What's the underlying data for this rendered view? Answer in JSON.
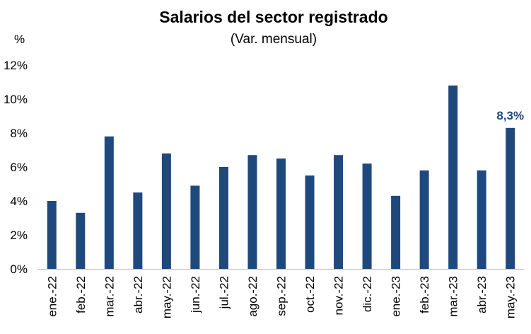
{
  "chart_data": {
    "type": "bar",
    "title": "Salarios del sector registrado",
    "subtitle": "(Var. mensual)",
    "y_unit_label": "%",
    "categories": [
      "ene.-22",
      "feb.-22",
      "mar.-22",
      "abr.-22",
      "may.-22",
      "jun.-22",
      "jul.-22",
      "ago.-22",
      "sep.-22",
      "oct.-22",
      "nov.-22",
      "dic.-22",
      "ene.-23",
      "feb.-23",
      "mar.-23",
      "abr.-23",
      "may.-23"
    ],
    "values": [
      4.0,
      3.3,
      7.8,
      4.5,
      6.8,
      4.9,
      6.0,
      6.7,
      6.5,
      5.5,
      6.7,
      6.2,
      4.3,
      5.8,
      10.8,
      5.8,
      8.3
    ],
    "ylim": [
      0,
      12
    ],
    "yticks": [
      "0%",
      "2%",
      "4%",
      "6%",
      "8%",
      "10%",
      "12%"
    ],
    "data_labels": [
      {
        "index": 16,
        "text": "8,3%"
      }
    ],
    "grid": false,
    "colors": {
      "bar": "#1F497D",
      "label": "#1F497D",
      "axis": "#BFBFBF"
    }
  }
}
